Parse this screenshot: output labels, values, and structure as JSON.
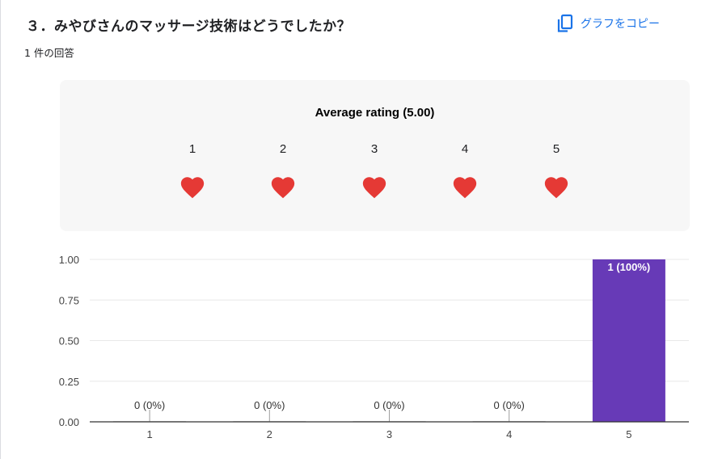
{
  "question": {
    "title": "３．みやびさんのマッサージ技術はどうでしたか？",
    "responses": "1 件の回答"
  },
  "toolbar": {
    "copy_label": "グラフをコピー",
    "copy_icon": "copy-icon"
  },
  "rating": {
    "average_title": "Average rating (5.00)",
    "levels": [
      "1",
      "2",
      "3",
      "4",
      "5"
    ],
    "icon": "heart-icon",
    "filled_count": 5,
    "heart_color": "#e53935"
  },
  "chart_data": {
    "type": "bar",
    "categories": [
      "1",
      "2",
      "3",
      "4",
      "5"
    ],
    "values": [
      0,
      0,
      0,
      0,
      1
    ],
    "data_labels": [
      "0 (0%)",
      "0 (0%)",
      "0 (0%)",
      "0 (0%)",
      "1 (100%)"
    ],
    "y_ticks": [
      "0.00",
      "0.25",
      "0.50",
      "0.75",
      "1.00"
    ],
    "ylim": [
      0,
      1
    ],
    "bar_color": "#673ab7",
    "grid": true
  }
}
